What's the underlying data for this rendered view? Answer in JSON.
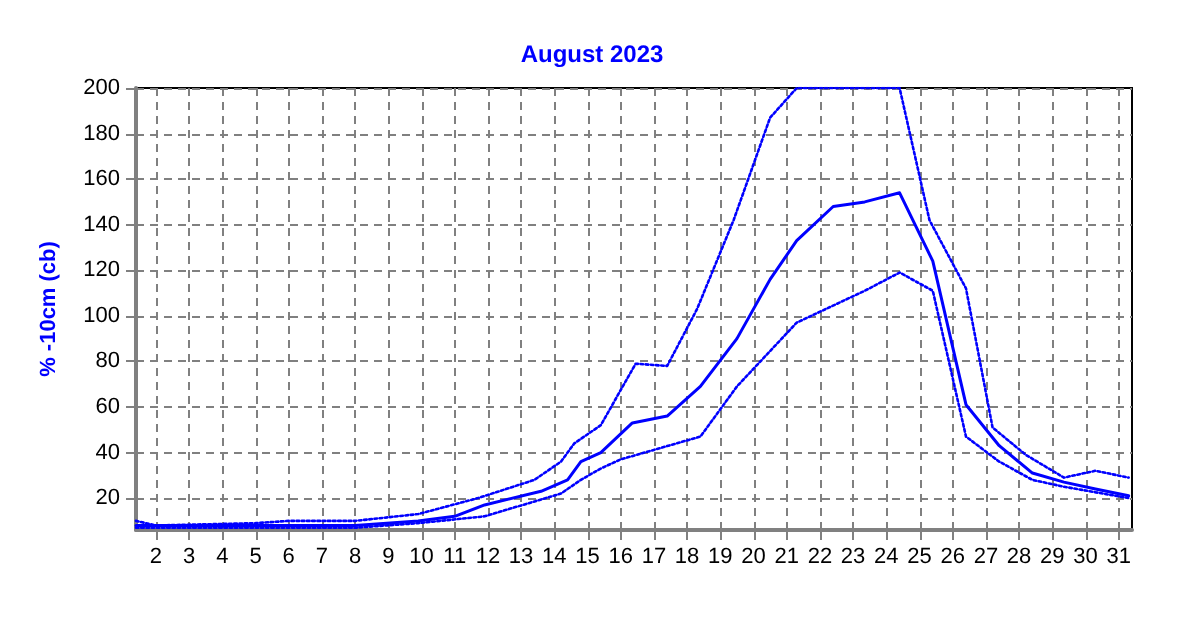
{
  "chart_data": {
    "type": "line",
    "title": "August 2023",
    "ylabel": "% -10cm (cb)",
    "xlim": [
      1.4,
      31.4
    ],
    "xticks": [
      2,
      3,
      4,
      5,
      6,
      7,
      8,
      9,
      10,
      11,
      12,
      13,
      14,
      15,
      16,
      17,
      18,
      19,
      20,
      21,
      22,
      23,
      24,
      25,
      26,
      27,
      28,
      29,
      30,
      31
    ],
    "ylim": [
      6,
      200
    ],
    "yticks": [
      20,
      40,
      60,
      80,
      100,
      120,
      140,
      160,
      180,
      200
    ],
    "grid": true,
    "marker": "none",
    "series": [
      {
        "color": "#0000ff",
        "line_style": "dotted",
        "x": [
          1.4,
          2.0,
          5.0,
          6.0,
          8.0,
          9.9,
          11.7,
          13.4,
          14.2,
          14.6,
          15.4,
          16.45,
          17.4,
          18.3,
          19.4,
          20.5,
          21.3,
          24.4,
          25.3,
          26.4,
          27.2,
          28.2,
          29.35,
          30.3,
          31.3
        ],
        "values": [
          10,
          8,
          9,
          10,
          10,
          13,
          20,
          28,
          36,
          44,
          52,
          79,
          78,
          103,
          142,
          187,
          200,
          200,
          142,
          112,
          51,
          39,
          29,
          32,
          29
        ]
      },
      {
        "color": "#0000ff",
        "line_style": "solid",
        "x": [
          1.4,
          5.0,
          8.0,
          9.9,
          11.0,
          11.9,
          13.6,
          14.4,
          14.8,
          15.4,
          16.35,
          17.4,
          18.4,
          19.5,
          20.5,
          21.3,
          22.4,
          23.35,
          24.4,
          25.4,
          26.4,
          27.4,
          28.4,
          29.35,
          30.3,
          31.3
        ],
        "values": [
          8,
          8,
          8,
          10,
          12,
          17,
          23,
          28,
          36,
          40,
          53,
          56,
          69,
          90,
          116,
          133,
          148,
          150,
          154,
          124,
          61,
          43,
          31,
          27,
          24,
          21
        ]
      },
      {
        "color": "#0000ff",
        "line_style": "dotted",
        "x": [
          1.4,
          5.0,
          8.0,
          9.9,
          11.9,
          14.2,
          14.8,
          15.4,
          16.0,
          18.4,
          19.5,
          21.3,
          23.35,
          24.4,
          25.4,
          26.4,
          27.4,
          28.4,
          29.35,
          31.3
        ],
        "values": [
          7,
          7,
          7,
          9,
          12,
          22,
          28,
          33,
          37,
          47,
          69,
          97,
          111,
          119,
          111,
          47,
          36,
          28,
          25,
          20
        ]
      }
    ]
  }
}
